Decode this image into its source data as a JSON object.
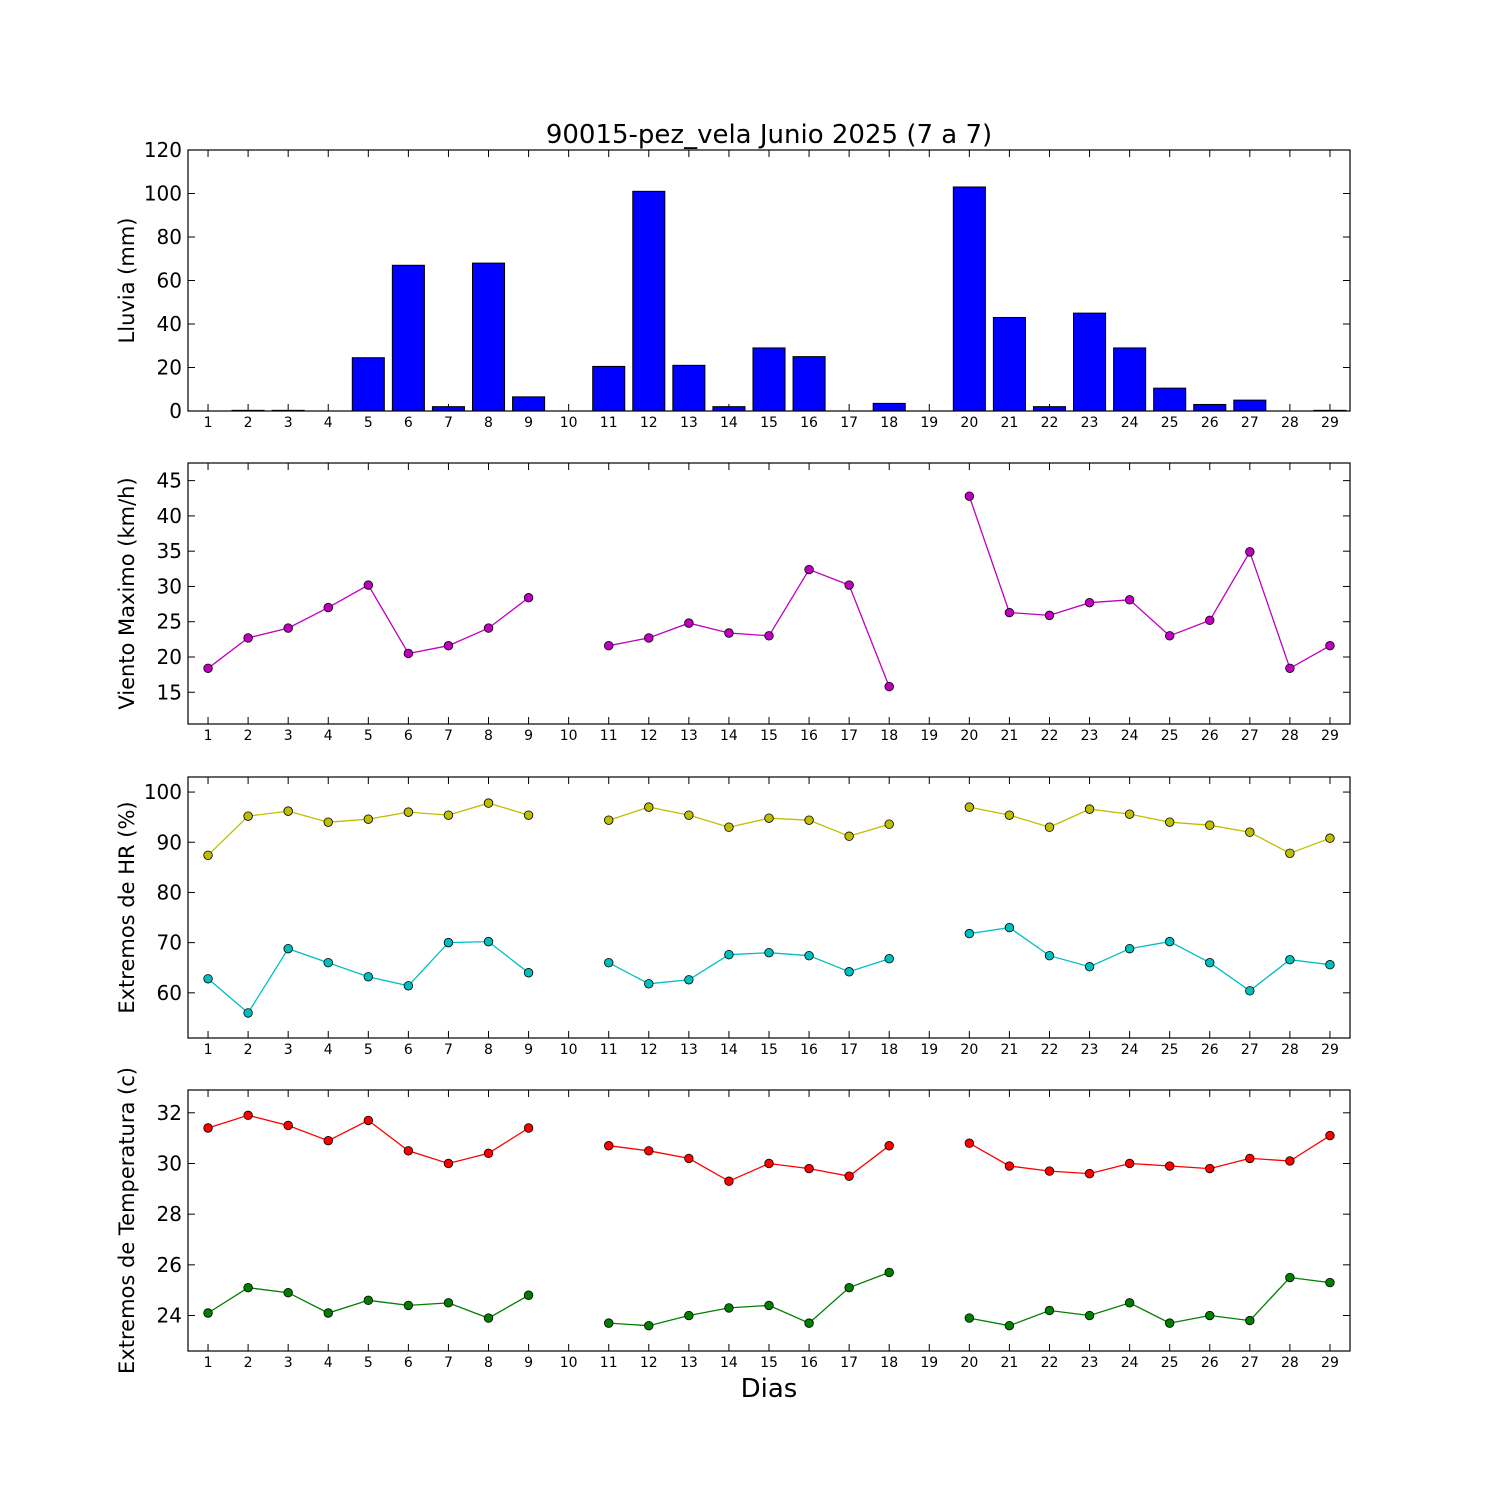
{
  "figure": {
    "title": "90015-pez_vela Junio 2025  (7 a 7)",
    "xlabel": "Dias"
  },
  "chart_data": [
    {
      "type": "bar",
      "ylabel": "Lluvia (mm)",
      "ylim": [
        0,
        120
      ],
      "yticks": [
        0,
        20,
        40,
        60,
        80,
        100,
        120
      ],
      "x": [
        1,
        2,
        3,
        4,
        5,
        6,
        7,
        8,
        9,
        10,
        11,
        12,
        13,
        14,
        15,
        16,
        17,
        18,
        19,
        20,
        21,
        22,
        23,
        24,
        25,
        26,
        27,
        28,
        29
      ],
      "xticks": [
        1,
        2,
        3,
        4,
        5,
        6,
        7,
        8,
        9,
        10,
        11,
        12,
        13,
        14,
        15,
        16,
        17,
        18,
        19,
        20,
        21,
        22,
        23,
        24,
        25,
        26,
        27,
        28,
        29
      ],
      "series": [
        {
          "color": "#0000ff",
          "values": [
            0,
            0.3,
            0.3,
            0,
            24.5,
            67,
            2,
            68,
            6.5,
            0,
            20.5,
            101,
            21,
            2,
            29,
            25,
            0,
            3.5,
            0,
            103,
            43,
            2,
            45,
            29,
            10.5,
            3,
            5,
            0,
            0.3
          ]
        }
      ]
    },
    {
      "type": "line",
      "ylabel": "Viento Maximo (km/h)",
      "ylim": [
        10.5,
        47.5
      ],
      "yticks": [
        15,
        20,
        25,
        30,
        35,
        40,
        45
      ],
      "x": [
        1,
        2,
        3,
        4,
        5,
        6,
        7,
        8,
        9,
        10,
        11,
        12,
        13,
        14,
        15,
        16,
        17,
        18,
        19,
        20,
        21,
        22,
        23,
        24,
        25,
        26,
        27,
        28,
        29
      ],
      "xticks": [
        1,
        2,
        3,
        4,
        5,
        6,
        7,
        8,
        9,
        10,
        11,
        12,
        13,
        14,
        15,
        16,
        17,
        18,
        19,
        20,
        21,
        22,
        23,
        24,
        25,
        26,
        27,
        28,
        29
      ],
      "series": [
        {
          "color": "#bf00bf",
          "values": [
            18.4,
            22.7,
            24.1,
            27.0,
            30.2,
            20.5,
            21.6,
            24.1,
            28.4,
            null,
            21.6,
            22.7,
            24.8,
            23.4,
            23.0,
            32.4,
            30.2,
            15.8,
            null,
            42.8,
            26.3,
            25.9,
            27.7,
            28.1,
            23.0,
            25.2,
            34.9,
            18.4,
            21.6
          ]
        }
      ]
    },
    {
      "type": "line",
      "ylabel": "Extremos de HR (%)",
      "ylim": [
        51,
        103
      ],
      "yticks": [
        60,
        70,
        80,
        90,
        100
      ],
      "x": [
        1,
        2,
        3,
        4,
        5,
        6,
        7,
        8,
        9,
        10,
        11,
        12,
        13,
        14,
        15,
        16,
        17,
        18,
        19,
        20,
        21,
        22,
        23,
        24,
        25,
        26,
        27,
        28,
        29
      ],
      "xticks": [
        1,
        2,
        3,
        4,
        5,
        6,
        7,
        8,
        9,
        10,
        11,
        12,
        13,
        14,
        15,
        16,
        17,
        18,
        19,
        20,
        21,
        22,
        23,
        24,
        25,
        26,
        27,
        28,
        29
      ],
      "series": [
        {
          "color": "#bfbf00",
          "values": [
            87.4,
            95.2,
            96.2,
            94.0,
            94.6,
            96.0,
            95.4,
            97.8,
            95.4,
            null,
            94.4,
            97.0,
            95.4,
            93.0,
            94.8,
            94.4,
            91.2,
            93.6,
            null,
            97.0,
            95.4,
            93.0,
            96.6,
            95.6,
            94.0,
            93.4,
            92.0,
            87.8,
            90.8
          ]
        },
        {
          "color": "#00bfbf",
          "values": [
            62.8,
            56.0,
            68.8,
            66.0,
            63.2,
            61.4,
            70.0,
            70.2,
            64.0,
            null,
            66.0,
            61.8,
            62.6,
            67.6,
            68.0,
            67.4,
            64.2,
            66.8,
            null,
            71.8,
            73.0,
            67.4,
            65.2,
            68.8,
            70.2,
            66.0,
            60.4,
            66.6,
            65.6
          ]
        }
      ]
    },
    {
      "type": "line",
      "ylabel": "Extremos de Temperatura (c)",
      "ylim": [
        22.6,
        32.9
      ],
      "yticks": [
        24,
        26,
        28,
        30,
        32
      ],
      "x": [
        1,
        2,
        3,
        4,
        5,
        6,
        7,
        8,
        9,
        10,
        11,
        12,
        13,
        14,
        15,
        16,
        17,
        18,
        19,
        20,
        21,
        22,
        23,
        24,
        25,
        26,
        27,
        28,
        29
      ],
      "xticks": [
        1,
        2,
        3,
        4,
        5,
        6,
        7,
        8,
        9,
        10,
        11,
        12,
        13,
        14,
        15,
        16,
        17,
        18,
        19,
        20,
        21,
        22,
        23,
        24,
        25,
        26,
        27,
        28,
        29
      ],
      "series": [
        {
          "color": "#ff0000",
          "values": [
            31.4,
            31.9,
            31.5,
            30.9,
            31.7,
            30.5,
            30.0,
            30.4,
            31.4,
            null,
            30.7,
            30.5,
            30.2,
            29.3,
            30.0,
            29.8,
            29.5,
            30.7,
            null,
            30.8,
            29.9,
            29.7,
            29.6,
            30.0,
            29.9,
            29.8,
            30.2,
            30.1,
            31.1
          ]
        },
        {
          "color": "#007f00",
          "values": [
            24.1,
            25.1,
            24.9,
            24.1,
            24.6,
            24.4,
            24.5,
            23.9,
            24.8,
            null,
            23.7,
            23.6,
            24.0,
            24.3,
            24.4,
            23.7,
            25.1,
            25.7,
            null,
            23.9,
            23.6,
            24.2,
            24.0,
            24.5,
            23.7,
            24.0,
            23.8,
            25.5,
            25.3
          ]
        }
      ]
    }
  ]
}
